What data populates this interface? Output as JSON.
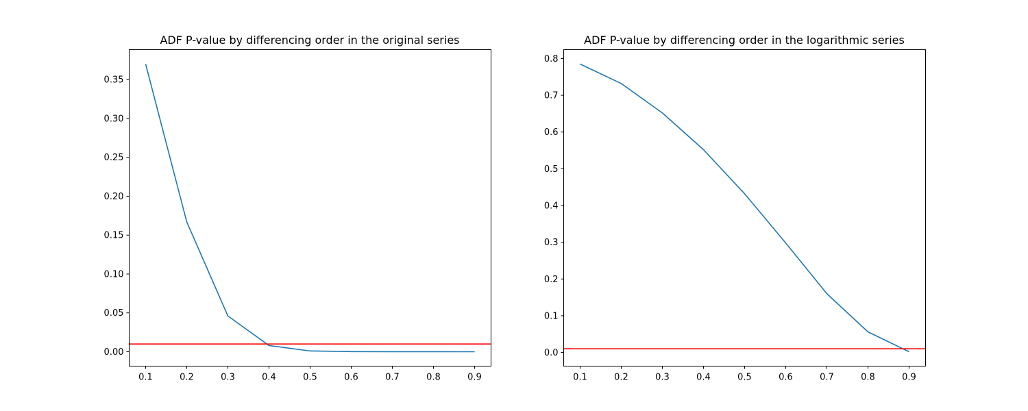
{
  "chart_data": [
    {
      "type": "line",
      "title": "ADF P-value by differencing order in the original series",
      "xlabel": "",
      "ylabel": "",
      "x": [
        0.1,
        0.2,
        0.3,
        0.4,
        0.5,
        0.6,
        0.7,
        0.8,
        0.9
      ],
      "series": [
        {
          "values": [
            0.37,
            0.167,
            0.046,
            0.008,
            0.001,
            0.0002,
            0.0001,
            0.0001,
            0.0
          ]
        }
      ],
      "threshold": 0.01,
      "xticks": [
        0.1,
        0.2,
        0.3,
        0.4,
        0.5,
        0.6,
        0.7,
        0.8,
        0.9
      ],
      "xtick_labels": [
        "0.1",
        "0.2",
        "0.3",
        "0.4",
        "0.5",
        "0.6",
        "0.7",
        "0.8",
        "0.9"
      ],
      "yticks": [
        0.0,
        0.05,
        0.1,
        0.15,
        0.2,
        0.25,
        0.3,
        0.35
      ],
      "ytick_labels": [
        "0.00",
        "0.05",
        "0.10",
        "0.15",
        "0.20",
        "0.25",
        "0.30",
        "0.35"
      ],
      "xlim": [
        0.06,
        0.94
      ],
      "ylim": [
        -0.0185,
        0.3885
      ],
      "grid": false,
      "line_color": "#1f77b4",
      "threshold_color": "#ff0000"
    },
    {
      "type": "line",
      "title": "ADF P-value by differencing order in the logarithmic series",
      "xlabel": "",
      "ylabel": "",
      "x": [
        0.1,
        0.2,
        0.3,
        0.4,
        0.5,
        0.6,
        0.7,
        0.8,
        0.9
      ],
      "series": [
        {
          "values": [
            0.785,
            0.732,
            0.652,
            0.552,
            0.432,
            0.298,
            0.16,
            0.056,
            0.002
          ]
        }
      ],
      "threshold": 0.01,
      "xticks": [
        0.1,
        0.2,
        0.3,
        0.4,
        0.5,
        0.6,
        0.7,
        0.8,
        0.9
      ],
      "xtick_labels": [
        "0.1",
        "0.2",
        "0.3",
        "0.4",
        "0.5",
        "0.6",
        "0.7",
        "0.8",
        "0.9"
      ],
      "yticks": [
        0.0,
        0.1,
        0.2,
        0.3,
        0.4,
        0.5,
        0.6,
        0.7,
        0.8
      ],
      "ytick_labels": [
        "0.0",
        "0.1",
        "0.2",
        "0.3",
        "0.4",
        "0.5",
        "0.6",
        "0.7",
        "0.8"
      ],
      "xlim": [
        0.06,
        0.94
      ],
      "ylim": [
        -0.0372,
        0.8242
      ],
      "grid": false,
      "line_color": "#1f77b4",
      "threshold_color": "#ff0000"
    }
  ]
}
